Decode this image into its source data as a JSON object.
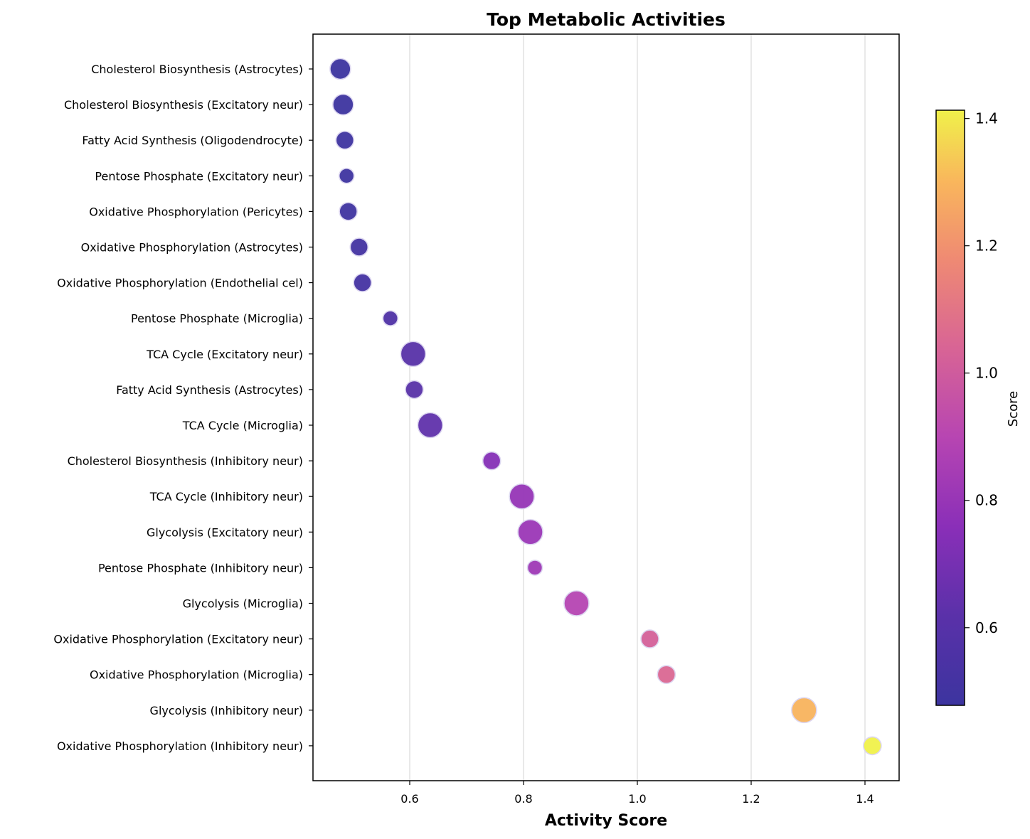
{
  "chart_data": {
    "type": "scatter",
    "title": "Top Metabolic Activities",
    "xlabel": "Activity Score",
    "ylabel": "",
    "xlim": [
      0.43,
      1.46
    ],
    "x_ticks": [
      "0.6",
      "0.8",
      "1.0",
      "1.2",
      "1.4"
    ],
    "x_tick_values": [
      0.6,
      0.8,
      1.0,
      1.2,
      1.4
    ],
    "grid": "vertical",
    "points": [
      {
        "label": "Cholesterol Biosynthesis (Astrocytes)",
        "x": 0.478,
        "size": 3
      },
      {
        "label": "Cholesterol Biosynthesis (Excitatory neur)",
        "x": 0.483,
        "size": 3
      },
      {
        "label": "Fatty Acid Synthesis (Oligodendrocyte)",
        "x": 0.486,
        "size": 2
      },
      {
        "label": "Pentose Phosphate (Excitatory neur)",
        "x": 0.489,
        "size": 1
      },
      {
        "label": "Oxidative Phosphorylation (Pericytes)",
        "x": 0.492,
        "size": 2
      },
      {
        "label": "Oxidative Phosphorylation (Astrocytes)",
        "x": 0.511,
        "size": 2
      },
      {
        "label": "Oxidative Phosphorylation (Endothelial cel)",
        "x": 0.517,
        "size": 2
      },
      {
        "label": "Pentose Phosphate (Microglia)",
        "x": 0.566,
        "size": 1
      },
      {
        "label": "TCA Cycle (Excitatory neur)",
        "x": 0.606,
        "size": 4
      },
      {
        "label": "Fatty Acid Synthesis (Astrocytes)",
        "x": 0.608,
        "size": 2
      },
      {
        "label": "TCA Cycle (Microglia)",
        "x": 0.636,
        "size": 4
      },
      {
        "label": "Cholesterol Biosynthesis (Inhibitory neur)",
        "x": 0.744,
        "size": 2
      },
      {
        "label": "TCA Cycle (Inhibitory neur)",
        "x": 0.797,
        "size": 4
      },
      {
        "label": "Glycolysis (Excitatory neur)",
        "x": 0.812,
        "size": 4
      },
      {
        "label": "Pentose Phosphate (Inhibitory neur)",
        "x": 0.82,
        "size": 1
      },
      {
        "label": "Glycolysis (Microglia)",
        "x": 0.893,
        "size": 4
      },
      {
        "label": "Oxidative Phosphorylation (Excitatory neur)",
        "x": 1.022,
        "size": 2
      },
      {
        "label": "Oxidative Phosphorylation (Microglia)",
        "x": 1.051,
        "size": 2
      },
      {
        "label": "Glycolysis (Inhibitory neur)",
        "x": 1.293,
        "size": 4
      },
      {
        "label": "Oxidative Phosphorylation (Inhibitory neur)",
        "x": 1.413,
        "size": 2
      }
    ],
    "colorbar": {
      "title": "Score",
      "colormap": "plasma",
      "range": [
        0.478,
        1.413
      ],
      "ticks": [
        "0.6",
        "0.8",
        "1.0",
        "1.2",
        "1.4"
      ],
      "tick_values": [
        0.6,
        0.8,
        1.0,
        1.2,
        1.4
      ]
    }
  }
}
